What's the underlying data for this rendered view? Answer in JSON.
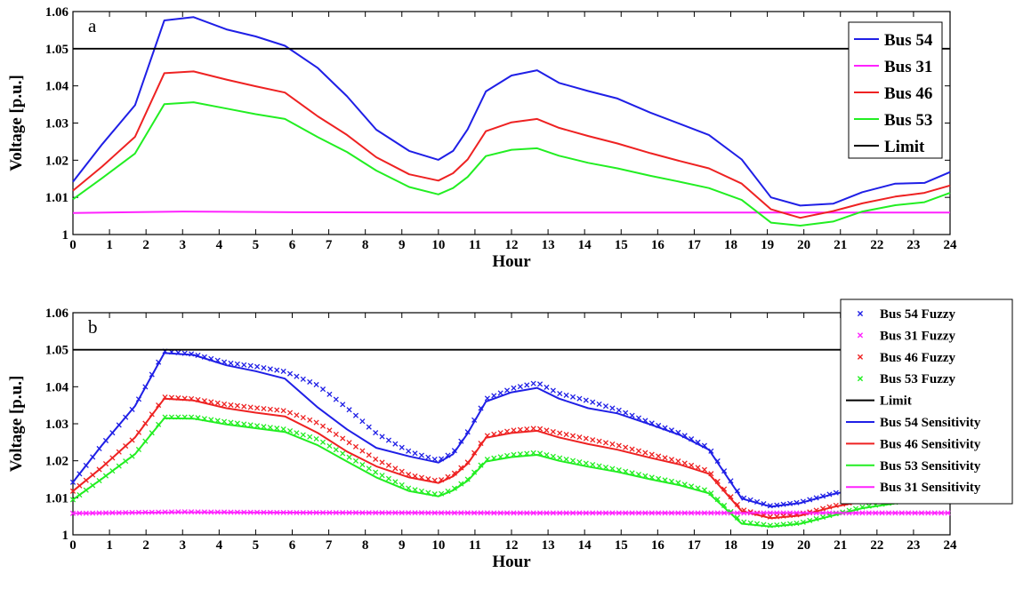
{
  "chart_data": [
    {
      "type": "line",
      "panel_label": "a",
      "xlabel": "Hour",
      "ylabel": "Voltage [p.u.]",
      "xlim": [
        0,
        24
      ],
      "ylim": [
        1,
        1.06
      ],
      "xticks": [
        "0",
        "1",
        "2",
        "3",
        "4",
        "5",
        "6",
        "7",
        "8",
        "9",
        "10",
        "11",
        "12",
        "13",
        "14",
        "15",
        "16",
        "17",
        "18",
        "19",
        "20",
        "21",
        "22",
        "23",
        "24"
      ],
      "yticks": [
        "1",
        "1.01",
        "1.02",
        "1.03",
        "1.04",
        "1.05",
        "1.06"
      ],
      "grid": false,
      "legend_position": "top-right",
      "limit": {
        "name": "Limit",
        "y": 1.05,
        "color": "#000000"
      },
      "series": [
        {
          "name": "Bus 54",
          "color": "#1f1fe6",
          "x": [
            0,
            0.8,
            1.7,
            2.5,
            3.3,
            4.2,
            5,
            5.8,
            6.7,
            7.5,
            8.3,
            9.2,
            10,
            10.4,
            10.8,
            11.3,
            12,
            12.7,
            13.3,
            14.1,
            14.9,
            15.8,
            16.6,
            17.4,
            18.3,
            19.1,
            19.9,
            20.8,
            21.6,
            22.5,
            23.3,
            24
          ],
          "values": [
            1.0142,
            1.0243,
            1.0348,
            1.0576,
            1.0585,
            1.0552,
            1.0533,
            1.0508,
            1.0448,
            1.0372,
            1.0282,
            1.0225,
            1.0201,
            1.0225,
            1.0283,
            1.0385,
            1.0428,
            1.0442,
            1.0408,
            1.0386,
            1.0366,
            1.0328,
            1.0298,
            1.0268,
            1.0202,
            1.01,
            1.0078,
            1.0083,
            1.0114,
            1.0137,
            1.0139,
            1.0168
          ]
        },
        {
          "name": "Bus 31",
          "color": "#ff22ff",
          "x": [
            0,
            3,
            6,
            12,
            18,
            24
          ],
          "values": [
            1.0058,
            1.0062,
            1.006,
            1.0059,
            1.0059,
            1.0059
          ]
        },
        {
          "name": "Bus 46",
          "color": "#ee2222",
          "x": [
            0,
            0.8,
            1.7,
            2.5,
            3.3,
            4.2,
            5,
            5.8,
            6.7,
            7.5,
            8.3,
            9.2,
            10,
            10.4,
            10.8,
            11.3,
            12,
            12.7,
            13.3,
            14.1,
            14.9,
            15.8,
            16.6,
            17.4,
            18.3,
            19.1,
            19.9,
            20.8,
            21.6,
            22.5,
            23.3,
            24
          ],
          "values": [
            1.0118,
            1.0183,
            1.0263,
            1.0434,
            1.0439,
            1.0417,
            1.0399,
            1.0382,
            1.0318,
            1.0268,
            1.0208,
            1.0162,
            1.0145,
            1.0165,
            1.0202,
            1.0278,
            1.0302,
            1.0311,
            1.0287,
            1.0265,
            1.0245,
            1.0219,
            1.0198,
            1.0178,
            1.0137,
            1.0068,
            1.0045,
            1.0063,
            1.0084,
            1.0102,
            1.0112,
            1.0132
          ]
        },
        {
          "name": "Bus 53",
          "color": "#22ee22",
          "x": [
            0,
            0.8,
            1.7,
            2.5,
            3.3,
            4.2,
            5,
            5.8,
            6.7,
            7.5,
            8.3,
            9.2,
            10,
            10.4,
            10.8,
            11.3,
            12,
            12.7,
            13.3,
            14.1,
            14.9,
            15.8,
            16.6,
            17.4,
            18.3,
            19.1,
            19.9,
            20.8,
            21.6,
            22.5,
            23.3,
            24
          ],
          "values": [
            1.0095,
            1.0152,
            1.0218,
            1.0351,
            1.0356,
            1.0339,
            1.0324,
            1.0311,
            1.0262,
            1.0222,
            1.0172,
            1.0128,
            1.0108,
            1.0125,
            1.0155,
            1.0211,
            1.0228,
            1.0232,
            1.0212,
            1.0193,
            1.0178,
            1.0158,
            1.0142,
            1.0125,
            1.0093,
            1.0032,
            1.0024,
            1.0035,
            1.0062,
            1.0079,
            1.0087,
            1.0112
          ]
        },
        {
          "name": "Limit",
          "color": "#000000",
          "x": [
            0,
            24
          ],
          "values": [
            1.05,
            1.05
          ]
        }
      ]
    },
    {
      "type": "line",
      "panel_label": "b",
      "xlabel": "Hour",
      "ylabel": "Voltage [p.u.]",
      "xlim": [
        0,
        24
      ],
      "ylim": [
        1,
        1.06
      ],
      "xticks": [
        "0",
        "1",
        "2",
        "3",
        "4",
        "5",
        "6",
        "7",
        "8",
        "9",
        "10",
        "11",
        "12",
        "13",
        "14",
        "15",
        "16",
        "17",
        "18",
        "19",
        "20",
        "21",
        "22",
        "23",
        "24"
      ],
      "yticks": [
        "1",
        "1.01",
        "1.02",
        "1.03",
        "1.04",
        "1.05",
        "1.06"
      ],
      "grid": false,
      "legend_position": "top-right",
      "limit": {
        "name": "Limit",
        "y": 1.05,
        "color": "#000000"
      },
      "series": [
        {
          "name": "Bus 54 Fuzzy",
          "style": "markers",
          "color": "#1f1fe6",
          "x": [
            0,
            0.8,
            1.7,
            2.5,
            3.3,
            4.2,
            5,
            5.8,
            6.7,
            7.5,
            8.3,
            9.2,
            10,
            10.4,
            10.8,
            11.3,
            12,
            12.7,
            13.3,
            14.1,
            14.9,
            15.8,
            16.6,
            17.4,
            18.3,
            19.1,
            19.9,
            20.8,
            21.6,
            22.5,
            23.3,
            24
          ],
          "values": [
            1.0142,
            1.0243,
            1.0348,
            1.0496,
            1.0488,
            1.0465,
            1.0455,
            1.0441,
            1.0404,
            1.0343,
            1.0274,
            1.0225,
            1.0201,
            1.0222,
            1.0278,
            1.0367,
            1.0395,
            1.0411,
            1.0382,
            1.0362,
            1.0338,
            1.0303,
            1.0275,
            1.0235,
            1.0101,
            1.0078,
            1.0088,
            1.0112,
            1.0128,
            1.0134,
            1.0142,
            1.0148
          ]
        },
        {
          "name": "Bus 31 Fuzzy",
          "style": "markers",
          "color": "#ff22ff",
          "x": [
            0,
            3,
            6,
            12,
            18,
            24
          ],
          "values": [
            1.0058,
            1.0062,
            1.006,
            1.0059,
            1.0059,
            1.0059
          ]
        },
        {
          "name": "Bus 46 Fuzzy",
          "style": "markers",
          "color": "#ee2222",
          "x": [
            0,
            0.8,
            1.7,
            2.5,
            3.3,
            4.2,
            5,
            5.8,
            6.7,
            7.5,
            8.3,
            9.2,
            10,
            10.4,
            10.8,
            11.3,
            12,
            12.7,
            13.3,
            14.1,
            14.9,
            15.8,
            16.6,
            17.4,
            18.3,
            19.1,
            19.9,
            20.8,
            21.6,
            22.5,
            23.3,
            24
          ],
          "values": [
            1.0118,
            1.0183,
            1.0263,
            1.0372,
            1.0367,
            1.0352,
            1.0343,
            1.0335,
            1.0302,
            1.0253,
            1.0203,
            1.0162,
            1.0145,
            1.0163,
            1.0196,
            1.0267,
            1.0282,
            1.0288,
            1.0275,
            1.0259,
            1.0242,
            1.0218,
            1.0198,
            1.0172,
            1.0068,
            1.0048,
            1.0055,
            1.0078,
            1.0093,
            1.0106,
            1.0118,
            1.0132
          ]
        },
        {
          "name": "Bus 53 Fuzzy",
          "style": "markers",
          "color": "#22ee22",
          "x": [
            0,
            0.8,
            1.7,
            2.5,
            3.3,
            4.2,
            5,
            5.8,
            6.7,
            7.5,
            8.3,
            9.2,
            10,
            10.4,
            10.8,
            11.3,
            12,
            12.7,
            13.3,
            14.1,
            14.9,
            15.8,
            16.6,
            17.4,
            18.3,
            19.1,
            19.9,
            20.8,
            21.6,
            22.5,
            23.3,
            24
          ],
          "values": [
            1.0095,
            1.0152,
            1.0218,
            1.0318,
            1.0318,
            1.0305,
            1.0295,
            1.0285,
            1.0258,
            1.0213,
            1.0168,
            1.0125,
            1.0108,
            1.0123,
            1.015,
            1.0203,
            1.0216,
            1.0222,
            1.0208,
            1.0192,
            1.0176,
            1.0156,
            1.014,
            1.0118,
            1.0035,
            1.0025,
            1.0032,
            1.0055,
            1.0075,
            1.0088,
            1.0098,
            1.0112
          ]
        },
        {
          "name": "Limit",
          "style": "line",
          "color": "#000000",
          "x": [
            0,
            24
          ],
          "values": [
            1.05,
            1.05
          ]
        },
        {
          "name": "Bus 54 Sensitivity",
          "style": "line",
          "color": "#1f1fe6",
          "x": [
            0,
            0.8,
            1.7,
            2.5,
            3.3,
            4.2,
            5,
            5.8,
            6.7,
            7.5,
            8.3,
            9.2,
            10,
            10.4,
            10.8,
            11.3,
            12,
            12.7,
            13.3,
            14.1,
            14.9,
            15.8,
            16.6,
            17.4,
            18.3,
            19.1,
            19.9,
            20.8,
            21.6,
            22.5,
            23.3,
            24
          ],
          "values": [
            1.0142,
            1.0243,
            1.0348,
            1.0491,
            1.0486,
            1.0458,
            1.0442,
            1.0422,
            1.0344,
            1.0285,
            1.0235,
            1.0212,
            1.0195,
            1.0218,
            1.0274,
            1.036,
            1.0385,
            1.0397,
            1.0368,
            1.0342,
            1.0328,
            1.0298,
            1.027,
            1.023,
            1.0098,
            1.0076,
            1.0086,
            1.011,
            1.0126,
            1.0132,
            1.014,
            1.0146
          ]
        },
        {
          "name": "Bus 46 Sensitivity",
          "style": "line",
          "color": "#ee2222",
          "x": [
            0,
            0.8,
            1.7,
            2.5,
            3.3,
            4.2,
            5,
            5.8,
            6.7,
            7.5,
            8.3,
            9.2,
            10,
            10.4,
            10.8,
            11.3,
            12,
            12.7,
            13.3,
            14.1,
            14.9,
            15.8,
            16.6,
            17.4,
            18.3,
            19.1,
            19.9,
            20.8,
            21.6,
            22.5,
            23.3,
            24
          ],
          "values": [
            1.0118,
            1.0183,
            1.0263,
            1.0368,
            1.0363,
            1.0342,
            1.033,
            1.032,
            1.0275,
            1.0225,
            1.0185,
            1.0155,
            1.014,
            1.0158,
            1.0192,
            1.0262,
            1.0275,
            1.0281,
            1.0263,
            1.0245,
            1.023,
            1.0208,
            1.019,
            1.0165,
            1.0064,
            1.0045,
            1.0052,
            1.0075,
            1.009,
            1.0103,
            1.0115,
            1.013
          ]
        },
        {
          "name": "Bus 53 Sensitivity",
          "style": "line",
          "color": "#22ee22",
          "x": [
            0,
            0.8,
            1.7,
            2.5,
            3.3,
            4.2,
            5,
            5.8,
            6.7,
            7.5,
            8.3,
            9.2,
            10,
            10.4,
            10.8,
            11.3,
            12,
            12.7,
            13.3,
            14.1,
            14.9,
            15.8,
            16.6,
            17.4,
            18.3,
            19.1,
            19.9,
            20.8,
            21.6,
            22.5,
            23.3,
            24
          ],
          "values": [
            1.0095,
            1.0152,
            1.0218,
            1.0315,
            1.0314,
            1.0298,
            1.0288,
            1.0278,
            1.0242,
            1.0198,
            1.0155,
            1.0118,
            1.0104,
            1.012,
            1.0146,
            1.0198,
            1.021,
            1.0216,
            1.02,
            1.0184,
            1.017,
            1.015,
            1.0134,
            1.0112,
            1.003,
            1.0022,
            1.003,
            1.0052,
            1.0072,
            1.0085,
            1.0095,
            1.011
          ]
        },
        {
          "name": "Bus 31 Sensitivity",
          "style": "line",
          "color": "#ff22ff",
          "x": [
            0,
            3,
            6,
            12,
            18,
            24
          ],
          "values": [
            1.0058,
            1.0061,
            1.006,
            1.0059,
            1.0059,
            1.0059
          ]
        }
      ]
    }
  ]
}
